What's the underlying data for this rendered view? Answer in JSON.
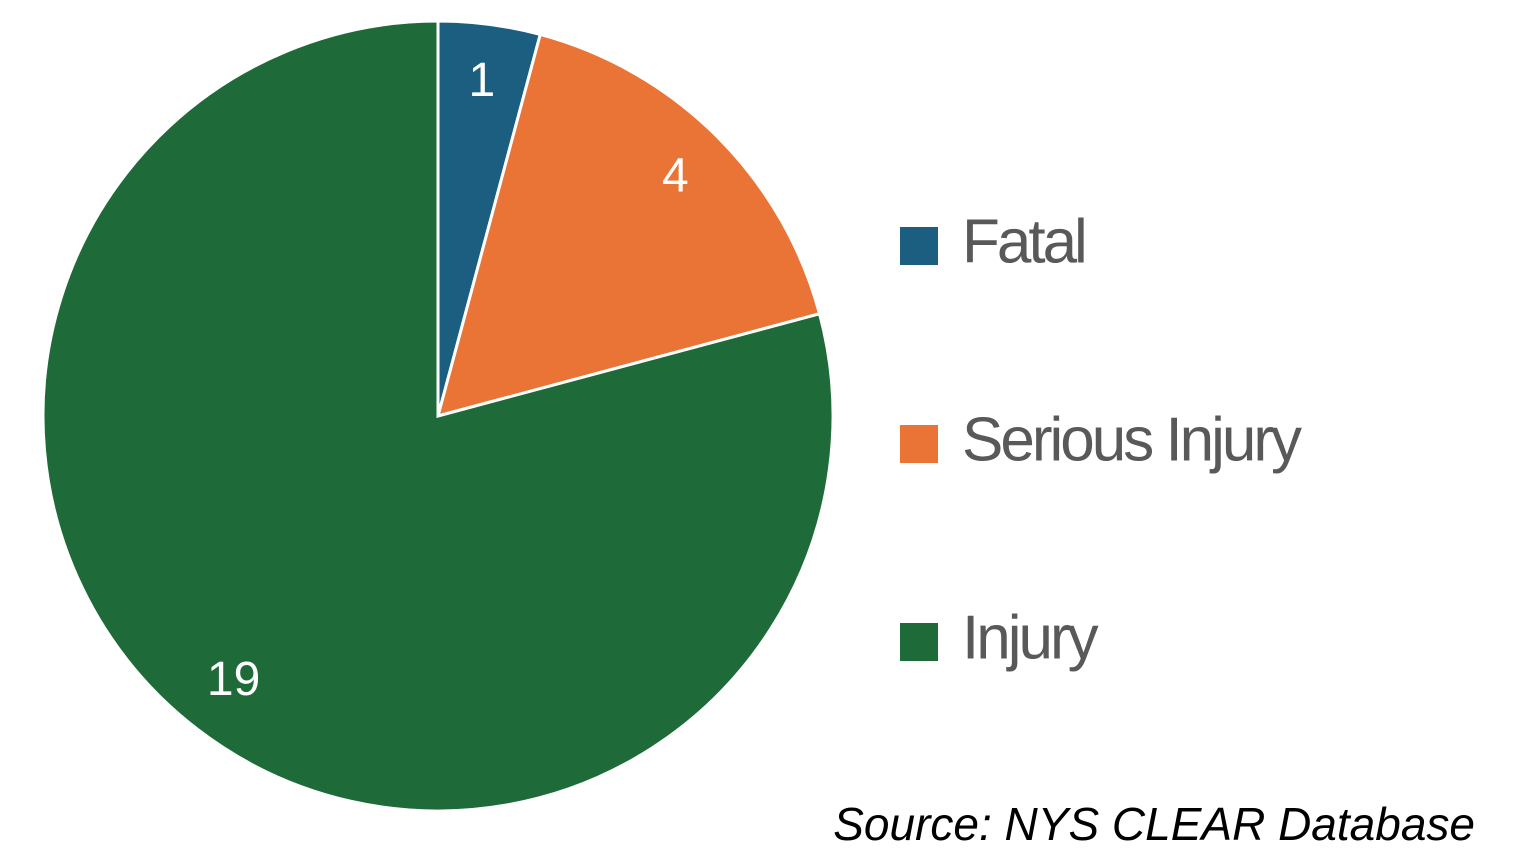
{
  "chart_data": {
    "type": "pie",
    "categories": [
      "Fatal",
      "Serious Injury",
      "Injury"
    ],
    "values": [
      1,
      4,
      19
    ],
    "colors": [
      "#1b5e80",
      "#e97435",
      "#1e6b39"
    ],
    "legend": "right",
    "source": "Source: NYS CLEAR Database"
  }
}
